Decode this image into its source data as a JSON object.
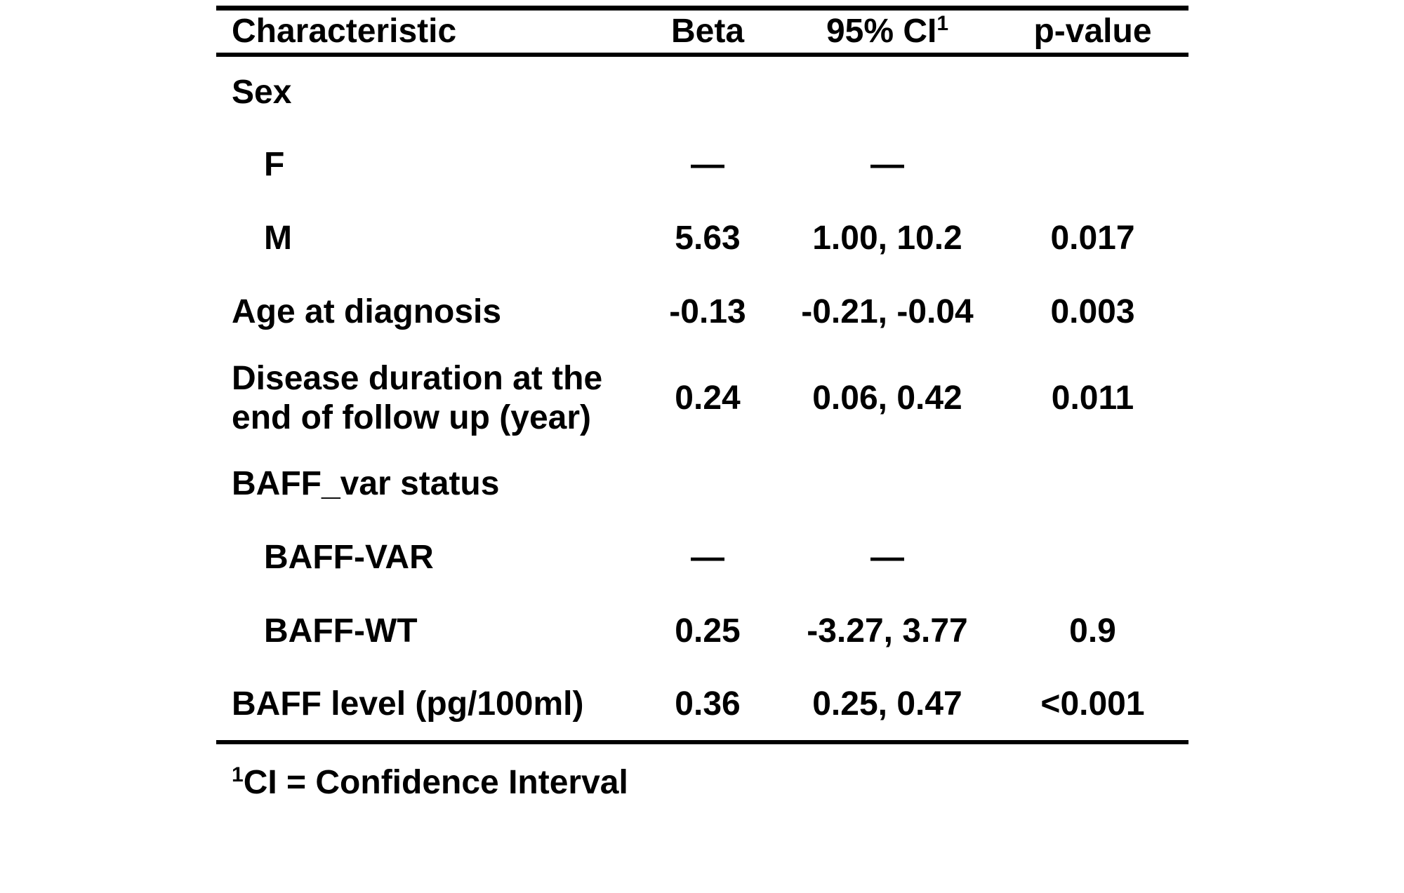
{
  "colors": {
    "background": "#ffffff",
    "text": "#000000",
    "rule": "#000000"
  },
  "chart_data": {
    "type": "table",
    "columns": [
      {
        "label": "Characteristic",
        "sup": ""
      },
      {
        "label": "Beta",
        "sup": ""
      },
      {
        "label": "95% CI",
        "sup": "1"
      },
      {
        "label": "p-value",
        "sup": ""
      }
    ],
    "rows": [
      {
        "label": "Sex",
        "level": 0,
        "beta": "",
        "ci": "",
        "p": ""
      },
      {
        "label": "F",
        "level": 1,
        "beta": "—",
        "ci": "—",
        "p": ""
      },
      {
        "label": "M",
        "level": 1,
        "beta": "5.63",
        "ci": "1.00, 10.2",
        "p": "0.017"
      },
      {
        "label": "Age at diagnosis",
        "level": 0,
        "beta": "-0.13",
        "ci": "-0.21, -0.04",
        "p": "0.003"
      },
      {
        "label": "Disease duration at the end of follow up (year)",
        "level": 0,
        "beta": "0.24",
        "ci": "0.06, 0.42",
        "p": "0.011"
      },
      {
        "label": "BAFF_var status",
        "level": 0,
        "beta": "",
        "ci": "",
        "p": ""
      },
      {
        "label": "BAFF-VAR",
        "level": 1,
        "beta": "—",
        "ci": "—",
        "p": ""
      },
      {
        "label": "BAFF-WT",
        "level": 1,
        "beta": "0.25",
        "ci": "-3.27, 3.77",
        "p": "0.9"
      },
      {
        "label": "BAFF level (pg/100ml)",
        "level": 0,
        "beta": "0.36",
        "ci": "0.25, 0.47",
        "p": "<0.001"
      }
    ],
    "footnote": {
      "sup": "1",
      "text": "CI = Confidence Interval"
    }
  }
}
